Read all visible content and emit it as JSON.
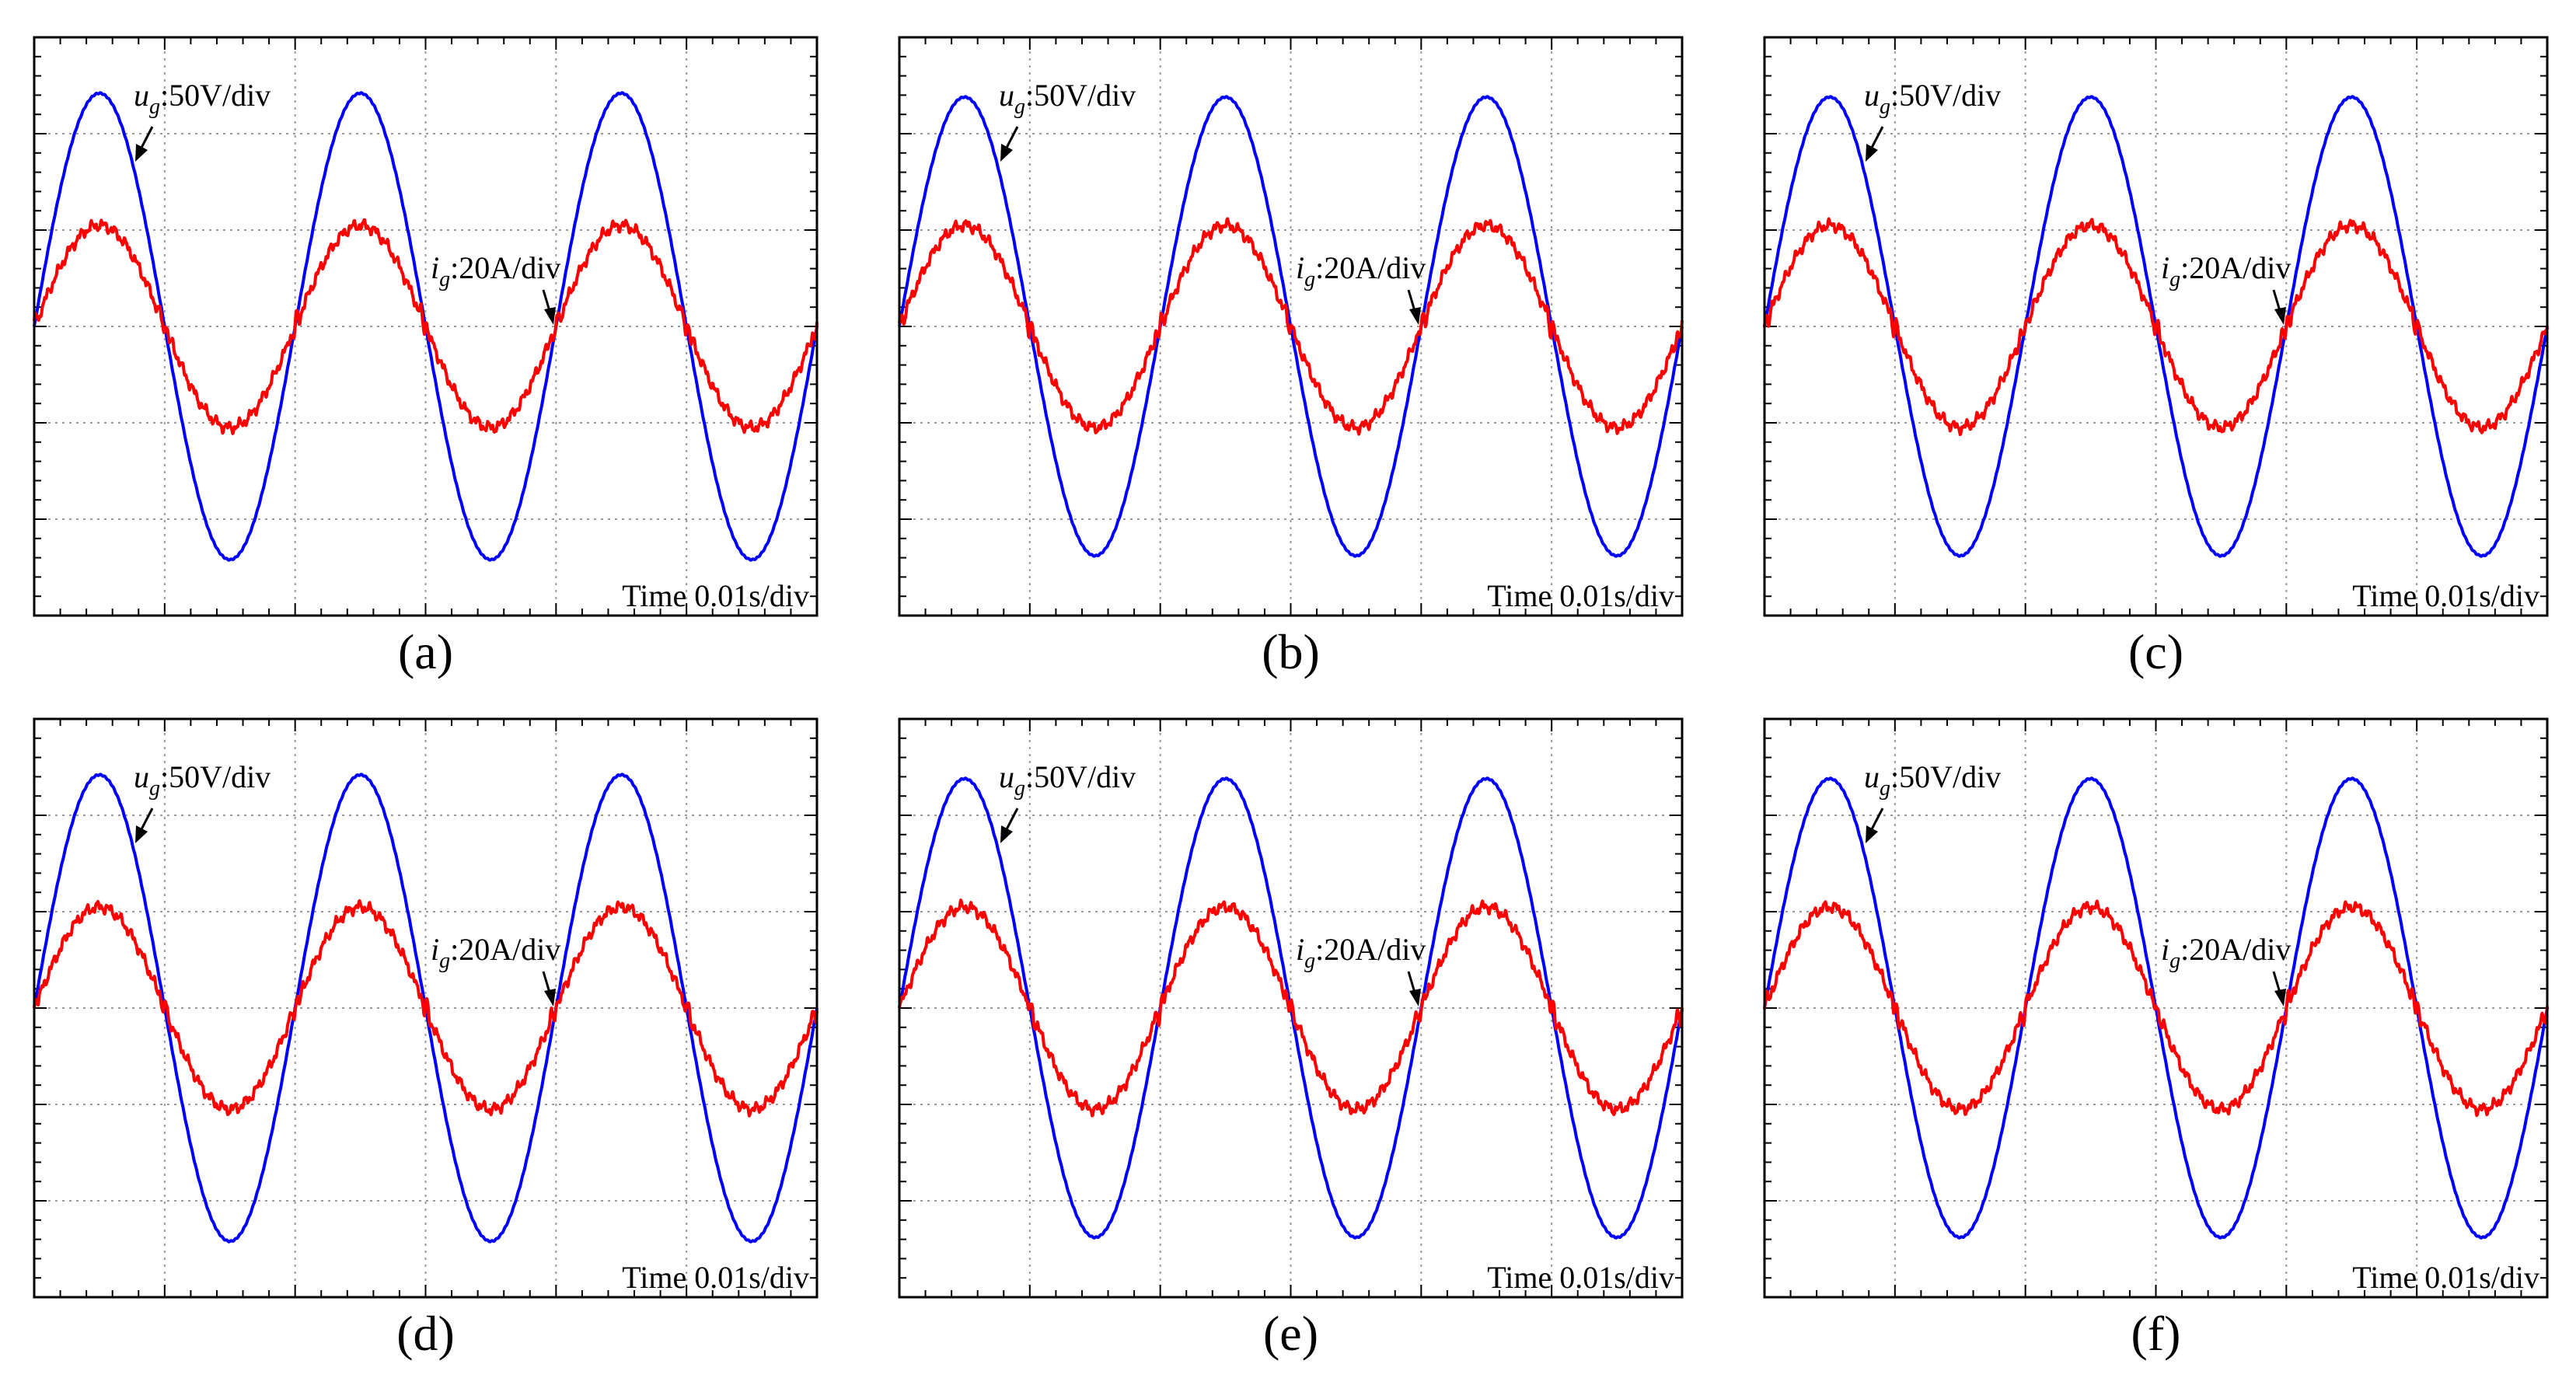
{
  "figure": {
    "panel_count": 6
  },
  "chart_data": [
    {
      "type": "line",
      "label": "(a)",
      "time_per_div": "Time 0.01s/div",
      "x_divisions": 6,
      "y_divisions": 6,
      "xlim": [
        0,
        0.06
      ],
      "ylim": [
        -3,
        3
      ],
      "series": [
        {
          "name": "ug",
          "unit_label": "50V/div",
          "color": "#0000ff",
          "amplitude_div": 2.42,
          "frequency_hz": 50,
          "phase_deg": 0
        },
        {
          "name": "ig",
          "unit_label": "20A/div",
          "color": "#ff0000",
          "amplitude_div": 1.05,
          "frequency_hz": 50,
          "phase_deg": 0
        }
      ],
      "annotations": [
        {
          "text_main": "u",
          "text_sub": "g",
          "text_rest": ":50V/div"
        },
        {
          "text_main": "i",
          "text_sub": "g",
          "text_rest": ":20A/div"
        }
      ]
    },
    {
      "type": "line",
      "label": "(b)",
      "time_per_div": "Time 0.01s/div",
      "x_divisions": 6,
      "y_divisions": 6,
      "xlim": [
        0,
        0.06
      ],
      "ylim": [
        -3,
        3
      ],
      "series": [
        {
          "name": "ug",
          "unit_label": "50V/div",
          "color": "#0000ff",
          "amplitude_div": 2.38,
          "frequency_hz": 50,
          "phase_deg": 0
        },
        {
          "name": "ig",
          "unit_label": "20A/div",
          "color": "#ff0000",
          "amplitude_div": 1.05,
          "frequency_hz": 50,
          "phase_deg": 0
        }
      ],
      "annotations": [
        {
          "text_main": "u",
          "text_sub": "g",
          "text_rest": ":50V/div"
        },
        {
          "text_main": "i",
          "text_sub": "g",
          "text_rest": ":20A/div"
        }
      ]
    },
    {
      "type": "line",
      "label": "(c)",
      "time_per_div": "Time 0.01s/div",
      "x_divisions": 6,
      "y_divisions": 6,
      "xlim": [
        0,
        0.06
      ],
      "ylim": [
        -3,
        3
      ],
      "series": [
        {
          "name": "ug",
          "unit_label": "50V/div",
          "color": "#0000ff",
          "amplitude_div": 2.38,
          "frequency_hz": 50,
          "phase_deg": 0
        },
        {
          "name": "ig",
          "unit_label": "20A/div",
          "color": "#ff0000",
          "amplitude_div": 1.05,
          "frequency_hz": 50,
          "phase_deg": 0
        }
      ],
      "annotations": [
        {
          "text_main": "u",
          "text_sub": "g",
          "text_rest": ":50V/div"
        },
        {
          "text_main": "i",
          "text_sub": "g",
          "text_rest": ":20A/div"
        }
      ]
    },
    {
      "type": "line",
      "label": "(d)",
      "time_per_div": "Time 0.01s/div",
      "x_divisions": 6,
      "y_divisions": 6,
      "xlim": [
        0,
        0.06
      ],
      "ylim": [
        -3,
        3
      ],
      "series": [
        {
          "name": "ug",
          "unit_label": "50V/div",
          "color": "#0000ff",
          "amplitude_div": 2.42,
          "frequency_hz": 50,
          "phase_deg": 0
        },
        {
          "name": "ig",
          "unit_label": "20A/div",
          "color": "#ff0000",
          "amplitude_div": 1.05,
          "frequency_hz": 50,
          "phase_deg": 0
        }
      ],
      "annotations": [
        {
          "text_main": "u",
          "text_sub": "g",
          "text_rest": ":50V/div"
        },
        {
          "text_main": "i",
          "text_sub": "g",
          "text_rest": ":20A/div"
        }
      ]
    },
    {
      "type": "line",
      "label": "(e)",
      "time_per_div": "Time 0.01s/div",
      "x_divisions": 6,
      "y_divisions": 6,
      "xlim": [
        0,
        0.06
      ],
      "ylim": [
        -3,
        3
      ],
      "series": [
        {
          "name": "ug",
          "unit_label": "50V/div",
          "color": "#0000ff",
          "amplitude_div": 2.38,
          "frequency_hz": 50,
          "phase_deg": 0
        },
        {
          "name": "ig",
          "unit_label": "20A/div",
          "color": "#ff0000",
          "amplitude_div": 1.05,
          "frequency_hz": 50,
          "phase_deg": 0
        }
      ],
      "annotations": [
        {
          "text_main": "u",
          "text_sub": "g",
          "text_rest": ":50V/div"
        },
        {
          "text_main": "i",
          "text_sub": "g",
          "text_rest": ":20A/div"
        }
      ]
    },
    {
      "type": "line",
      "label": "(f)",
      "time_per_div": "Time 0.01s/div",
      "x_divisions": 6,
      "y_divisions": 6,
      "xlim": [
        0,
        0.06
      ],
      "ylim": [
        -3,
        3
      ],
      "series": [
        {
          "name": "ug",
          "unit_label": "50V/div",
          "color": "#0000ff",
          "amplitude_div": 2.38,
          "frequency_hz": 50,
          "phase_deg": 0
        },
        {
          "name": "ig",
          "unit_label": "20A/div",
          "color": "#ff0000",
          "amplitude_div": 1.05,
          "frequency_hz": 50,
          "phase_deg": 0
        }
      ],
      "annotations": [
        {
          "text_main": "u",
          "text_sub": "g",
          "text_rest": ":50V/div"
        },
        {
          "text_main": "i",
          "text_sub": "g",
          "text_rest": ":20A/div"
        }
      ]
    }
  ]
}
